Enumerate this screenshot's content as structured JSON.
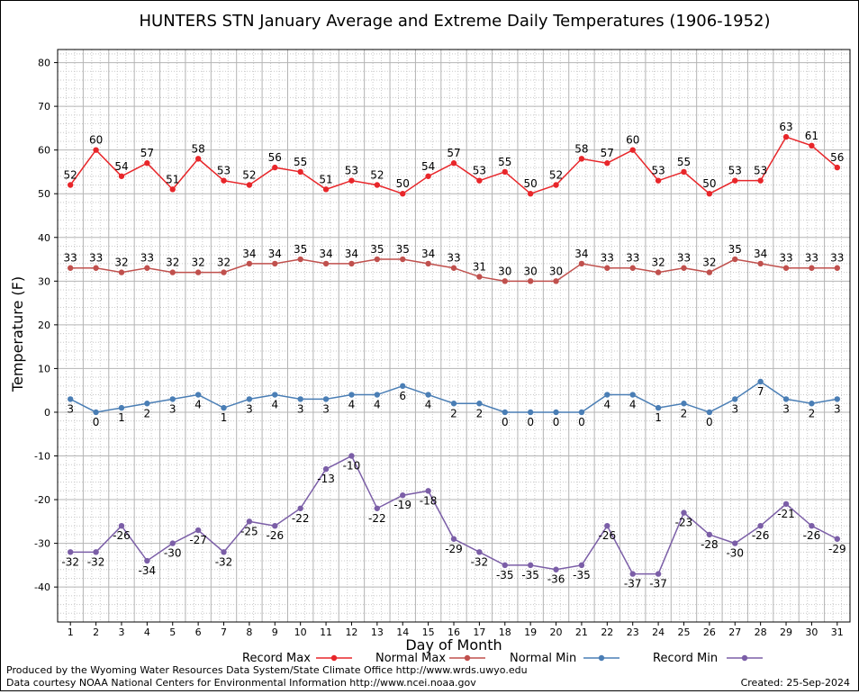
{
  "chart_data": {
    "type": "line",
    "title": "HUNTERS STN January Average and Extreme Daily Temperatures (1906-1952)",
    "xlabel": "Day of Month",
    "ylabel": "Temperature (F)",
    "xlim": [
      0.5,
      31.5
    ],
    "ylim": [
      -48,
      83
    ],
    "y_ticks": [
      -40,
      -30,
      -20,
      -10,
      0,
      10,
      20,
      30,
      40,
      50,
      60,
      70,
      80
    ],
    "x": [
      1,
      2,
      3,
      4,
      5,
      6,
      7,
      8,
      9,
      10,
      11,
      12,
      13,
      14,
      15,
      16,
      17,
      18,
      19,
      20,
      21,
      22,
      23,
      24,
      25,
      26,
      27,
      28,
      29,
      30,
      31
    ],
    "grid": true,
    "legend_position": "bottom",
    "series": [
      {
        "name": "Record Max",
        "color": "#e8262a",
        "label_position": "above",
        "values": [
          52,
          60,
          54,
          57,
          51,
          58,
          53,
          52,
          56,
          55,
          51,
          53,
          52,
          50,
          54,
          57,
          53,
          55,
          50,
          52,
          58,
          57,
          60,
          53,
          55,
          50,
          53,
          53,
          63,
          61,
          56
        ]
      },
      {
        "name": "Normal Max",
        "color": "#c0504d",
        "label_position": "above",
        "values": [
          33,
          33,
          32,
          33,
          32,
          32,
          32,
          34,
          34,
          35,
          34,
          34,
          35,
          35,
          34,
          33,
          31,
          30,
          30,
          30,
          34,
          33,
          33,
          32,
          33,
          32,
          35,
          34,
          33,
          33,
          33
        ]
      },
      {
        "name": "Normal Min",
        "color": "#4a7eb5",
        "label_position": "below",
        "values": [
          3,
          0,
          1,
          2,
          3,
          4,
          1,
          3,
          4,
          3,
          3,
          4,
          4,
          6,
          4,
          2,
          2,
          0,
          0,
          0,
          0,
          4,
          4,
          1,
          2,
          0,
          3,
          7,
          3,
          2,
          3
        ]
      },
      {
        "name": "Record Min",
        "color": "#7b5ea7",
        "label_position": "below",
        "values": [
          -32,
          -32,
          -26,
          -34,
          -30,
          -27,
          -32,
          -25,
          -26,
          -22,
          -13,
          -10,
          -22,
          -19,
          -18,
          -29,
          -32,
          -35,
          -35,
          -36,
          -35,
          -26,
          -37,
          -37,
          -23,
          -28,
          -30,
          -26,
          -21,
          -26,
          -29
        ]
      }
    ]
  },
  "footer": {
    "produced_by": "Produced by the Wyoming Water Resources Data System/State Climate Office http://www.wrds.uwyo.edu",
    "data_courtesy": "Data courtesy NOAA National Centers for Environmental Information http://www.ncei.noaa.gov",
    "created": "Created:  25-Sep-2024"
  }
}
